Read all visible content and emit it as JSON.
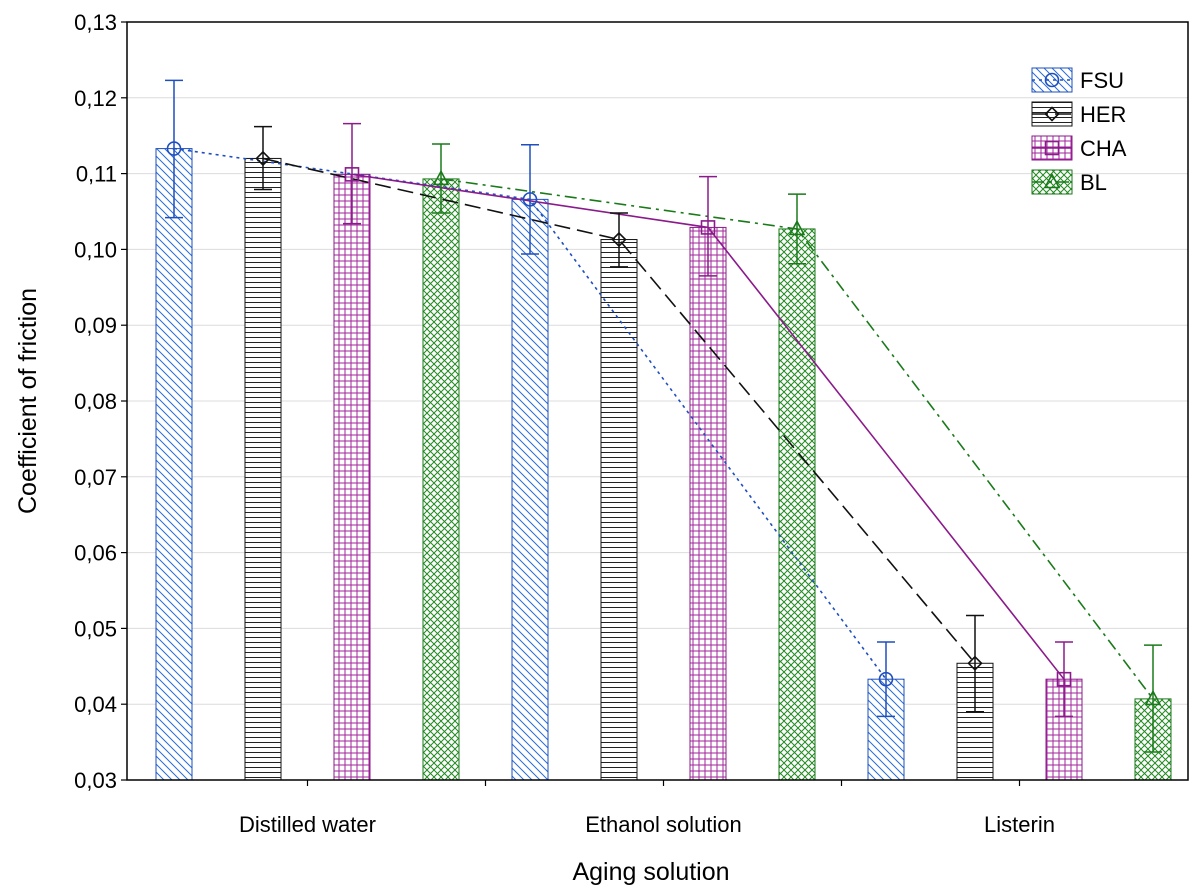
{
  "chart_data": {
    "type": "bar",
    "xlabel": "Aging solution",
    "ylabel": "Coefficient of friction",
    "categories": [
      "Distilled water",
      "Ethanol solution",
      "Listerin"
    ],
    "ylim": [
      0.03,
      0.13
    ],
    "yticks": [
      "0,03",
      "0,04",
      "0,05",
      "0,06",
      "0,07",
      "0,08",
      "0,09",
      "0,10",
      "0,11",
      "0,12",
      "0,13"
    ],
    "grid": "horizontal",
    "legend_position": "top-right",
    "series": [
      {
        "name": "FSU",
        "color": "#1f4fbf",
        "marker": "circle",
        "line": "dotted",
        "values": [
          0.1133,
          0.1066,
          0.0433
        ],
        "err_low": [
          0.1042,
          0.0994,
          0.0384
        ],
        "err_high": [
          0.1223,
          0.1138,
          0.0482
        ]
      },
      {
        "name": "HER",
        "color": "#111111",
        "marker": "diamond",
        "line": "dashed",
        "values": [
          0.112,
          0.1013,
          0.0454
        ],
        "err_low": [
          0.1079,
          0.0977,
          0.039
        ],
        "err_high": [
          0.1162,
          0.1048,
          0.0517
        ]
      },
      {
        "name": "CHA",
        "color": "#8b1a8b",
        "marker": "square",
        "line": "solid",
        "values": [
          0.1099,
          0.1029,
          0.0433
        ],
        "err_low": [
          0.1034,
          0.0965,
          0.0384
        ],
        "err_high": [
          0.1166,
          0.1096,
          0.0482
        ]
      },
      {
        "name": "BL",
        "color": "#1a7a1a",
        "marker": "triangle",
        "line": "dashdot",
        "values": [
          0.1093,
          0.1027,
          0.0407
        ],
        "err_low": [
          0.1048,
          0.0981,
          0.0337
        ],
        "err_high": [
          0.1139,
          0.1073,
          0.0478
        ]
      }
    ]
  }
}
